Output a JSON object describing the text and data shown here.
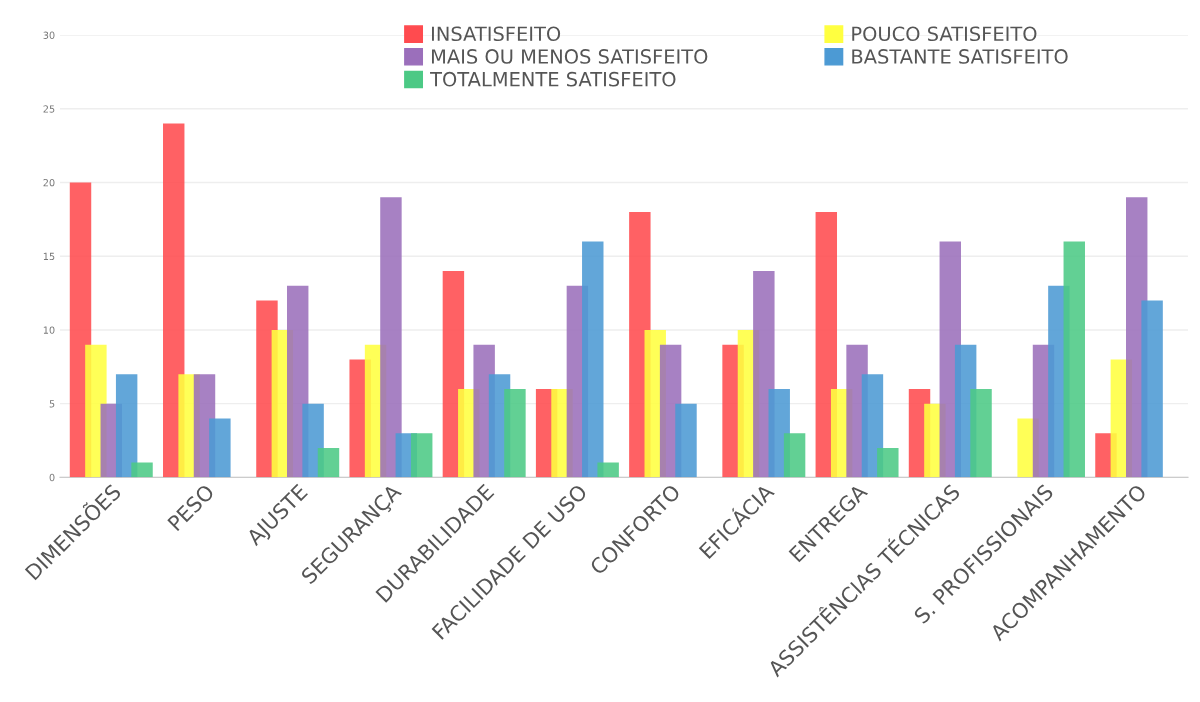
{
  "chart_data": {
    "type": "bar",
    "categories": [
      "DIMENSÕES",
      "PESO",
      "AJUSTE",
      "SEGURANÇA",
      "DURABILIDADE",
      "FACILIDADE DE USO",
      "CONFORTO",
      "EFICÁCIA",
      "ENTREGA",
      "ASSISTÊNCIAS TÉCNICAS",
      "S. PROFISSIONAIS",
      "ACOMPANHAMENTO"
    ],
    "series": [
      {
        "name": "INSATISFEITO",
        "color": "#ff4b4f",
        "values": [
          20,
          24,
          12,
          8,
          14,
          6,
          18,
          9,
          18,
          6,
          0,
          3
        ]
      },
      {
        "name": "POUCO SATISFEITO",
        "color": "#ffff40",
        "values": [
          9,
          7,
          10,
          9,
          6,
          6,
          10,
          10,
          6,
          5,
          4,
          8
        ]
      },
      {
        "name": "MAIS OU MENOS SATISFEITO",
        "color": "#9b6fbb",
        "values": [
          5,
          7,
          13,
          19,
          9,
          13,
          9,
          14,
          9,
          16,
          9,
          19
        ]
      },
      {
        "name": "BASTANTE SATISFEITO",
        "color": "#4c9ad4",
        "values": [
          7,
          4,
          5,
          3,
          7,
          16,
          5,
          6,
          7,
          9,
          13,
          12
        ]
      },
      {
        "name": "TOTALMENTE SATISFEITO",
        "color": "#4cc985",
        "values": [
          1,
          0,
          2,
          3,
          6,
          1,
          0,
          3,
          2,
          6,
          16,
          0
        ]
      }
    ],
    "ylim": [
      0,
      30
    ],
    "yticks": [
      0,
      5,
      10,
      15,
      20,
      25,
      30
    ],
    "grid": "y",
    "legend": "top"
  }
}
